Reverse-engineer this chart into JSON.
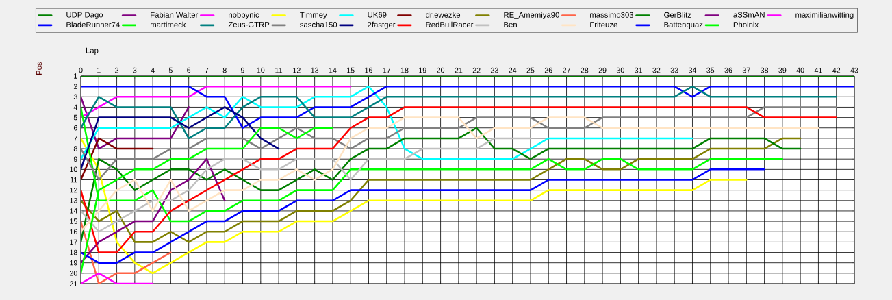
{
  "chart_data": {
    "type": "line",
    "xlabel": "Lap",
    "ylabel": "Pos",
    "x": [
      0,
      1,
      2,
      3,
      4,
      5,
      6,
      7,
      8,
      9,
      10,
      11,
      12,
      13,
      14,
      15,
      16,
      17,
      18,
      19,
      20,
      21,
      22,
      23,
      24,
      25,
      26,
      27,
      28,
      29,
      30,
      31,
      32,
      33,
      34,
      35,
      36,
      37,
      38,
      39,
      40,
      41,
      42,
      43
    ],
    "xlim": [
      0,
      43
    ],
    "xticks": [
      0,
      1,
      2,
      3,
      4,
      5,
      6,
      7,
      8,
      9,
      10,
      11,
      12,
      13,
      14,
      15,
      16,
      17,
      18,
      19,
      20,
      21,
      22,
      23,
      24,
      25,
      26,
      27,
      28,
      29,
      30,
      31,
      32,
      33,
      34,
      35,
      36,
      37,
      38,
      39,
      40,
      41,
      42,
      43
    ],
    "ylim": [
      21,
      1
    ],
    "yticks": [
      1,
      2,
      3,
      4,
      5,
      6,
      7,
      8,
      9,
      10,
      11,
      12,
      13,
      14,
      15,
      16,
      17,
      18,
      19,
      20,
      21
    ],
    "grid": true,
    "legend": "top",
    "series": [
      {
        "name": "UDP Dago",
        "color": "#008000",
        "values": [
          1,
          1,
          1,
          1,
          1,
          1,
          1,
          1,
          1,
          1,
          1,
          1,
          1,
          1,
          1,
          1,
          1,
          1,
          1,
          1,
          1,
          1,
          1,
          1,
          1,
          1,
          1,
          1,
          1,
          1,
          1,
          1,
          1,
          1,
          1,
          1,
          1,
          1,
          1,
          1,
          1,
          1,
          1,
          1
        ]
      },
      {
        "name": "BladeRunner74",
        "color": "#0000ff",
        "values": [
          2,
          2,
          2,
          2,
          2,
          2,
          2,
          3,
          3,
          6,
          5,
          5,
          5,
          4,
          4,
          4,
          3,
          2,
          2,
          2,
          2,
          2,
          2,
          2,
          2,
          2,
          2,
          2,
          2,
          2,
          2,
          2,
          2,
          2,
          3,
          2,
          2,
          2,
          2,
          2,
          2,
          2,
          2,
          2
        ]
      },
      {
        "name": "Fabian Walter",
        "color": "#800080",
        "values": [
          3,
          8,
          7,
          7,
          7,
          7,
          4,
          null,
          null,
          null,
          null,
          null,
          null,
          null,
          null,
          null,
          null,
          null,
          null,
          null,
          null,
          null,
          null,
          null,
          null,
          null,
          null,
          null,
          null,
          null,
          null,
          null,
          null,
          null,
          null,
          null,
          null,
          null,
          null,
          null,
          null,
          null,
          null,
          null
        ]
      },
      {
        "name": "martimeck",
        "color": "#00ff00",
        "values": [
          4,
          13,
          13,
          13,
          12,
          15,
          15,
          14,
          14,
          13,
          13,
          13,
          12,
          12,
          12,
          10,
          10,
          10,
          10,
          10,
          10,
          10,
          10,
          10,
          10,
          10,
          9,
          10,
          10,
          9,
          9,
          10,
          10,
          10,
          10,
          9,
          9,
          9,
          9,
          9,
          null,
          null,
          null,
          null
        ]
      },
      {
        "name": "nobbynic",
        "color": "#ff00ff",
        "values": [
          5,
          4,
          3,
          3,
          3,
          3,
          3,
          2,
          2,
          2,
          2,
          2,
          2,
          2,
          2,
          2,
          null,
          null,
          null,
          null,
          null,
          null,
          null,
          null,
          null,
          null,
          null,
          null,
          null,
          null,
          null,
          null,
          null,
          null,
          null,
          null,
          null,
          null,
          null,
          null,
          null,
          null,
          null,
          null
        ]
      },
      {
        "name": "Zeus-GTRP",
        "color": "#008080",
        "values": [
          6,
          3,
          4,
          4,
          4,
          4,
          7,
          6,
          6,
          4,
          3,
          3,
          3,
          5,
          5,
          5,
          4,
          3,
          3,
          3,
          3,
          3,
          3,
          3,
          3,
          3,
          3,
          3,
          3,
          3,
          3,
          3,
          3,
          3,
          2,
          3,
          3,
          3,
          3,
          3,
          3,
          3,
          3,
          null
        ]
      },
      {
        "name": "Timmey",
        "color": "#ffff00",
        "values": [
          7,
          10,
          17,
          19,
          20,
          19,
          18,
          17,
          17,
          16,
          16,
          16,
          15,
          15,
          15,
          14,
          13,
          13,
          13,
          13,
          13,
          13,
          13,
          13,
          13,
          13,
          12,
          12,
          12,
          12,
          12,
          12,
          12,
          12,
          12,
          11,
          11,
          11,
          null,
          null,
          null,
          null,
          null,
          null
        ]
      },
      {
        "name": "sascha150",
        "color": "#808080",
        "values": [
          8,
          11,
          9,
          9,
          9,
          8,
          8,
          7,
          7,
          7,
          8,
          7,
          6,
          7,
          7,
          8,
          7,
          7,
          6,
          6,
          6,
          6,
          5,
          5,
          5,
          5,
          6,
          6,
          6,
          5,
          5,
          5,
          5,
          5,
          5,
          5,
          5,
          5,
          4,
          4,
          4,
          4,
          4,
          null
        ]
      },
      {
        "name": "UK69",
        "color": "#00ffff",
        "values": [
          9,
          6,
          6,
          6,
          6,
          6,
          5,
          4,
          5,
          3,
          4,
          4,
          4,
          3,
          3,
          3,
          2,
          4,
          8,
          9,
          9,
          9,
          9,
          9,
          9,
          8,
          7,
          7,
          7,
          7,
          7,
          7,
          7,
          7,
          7,
          null,
          null,
          null,
          null,
          null,
          null,
          null,
          null,
          null
        ]
      },
      {
        "name": "2fastger",
        "color": "#000080",
        "values": [
          10,
          5,
          5,
          5,
          5,
          5,
          6,
          5,
          4,
          5,
          7,
          8,
          null,
          null,
          null,
          null,
          null,
          null,
          null,
          null,
          null,
          null,
          null,
          null,
          null,
          null,
          null,
          null,
          null,
          null,
          null,
          null,
          null,
          null,
          null,
          null,
          null,
          null,
          null,
          null,
          null,
          null,
          null,
          null
        ]
      },
      {
        "name": "dr.ewezke",
        "color": "#800000",
        "values": [
          11,
          7,
          8,
          8,
          8,
          null,
          null,
          null,
          null,
          null,
          null,
          null,
          null,
          null,
          null,
          null,
          null,
          null,
          null,
          null,
          null,
          null,
          null,
          null,
          null,
          null,
          null,
          null,
          null,
          null,
          null,
          null,
          null,
          null,
          null,
          null,
          null,
          null,
          null,
          null,
          null,
          null,
          null,
          null
        ]
      },
      {
        "name": "RedBullRacer",
        "color": "#ff0000",
        "values": [
          12,
          18,
          18,
          16,
          16,
          14,
          13,
          12,
          11,
          10,
          9,
          9,
          8,
          8,
          8,
          6,
          5,
          5,
          4,
          4,
          4,
          4,
          4,
          4,
          4,
          4,
          4,
          4,
          4,
          4,
          4,
          4,
          4,
          4,
          4,
          4,
          4,
          4,
          5,
          5,
          5,
          5,
          5,
          null
        ]
      },
      {
        "name": "RE_Amemiya90",
        "color": "#808000",
        "values": [
          13,
          15,
          14,
          17,
          17,
          16,
          17,
          16,
          16,
          15,
          15,
          15,
          14,
          14,
          14,
          13,
          11,
          11,
          11,
          11,
          11,
          11,
          11,
          11,
          11,
          11,
          10,
          9,
          9,
          10,
          10,
          9,
          9,
          9,
          9,
          8,
          8,
          8,
          8,
          7,
          7,
          null,
          null,
          null
        ]
      },
      {
        "name": "Ben",
        "color": "#c0c0c0",
        "values": [
          14,
          16,
          15,
          14,
          13,
          13,
          12,
          10,
          9,
          9,
          10,
          10,
          9,
          9,
          9,
          11,
          9,
          9,
          9,
          8,
          8,
          8,
          8,
          7,
          7,
          7,
          null,
          null,
          null,
          null,
          null,
          null,
          null,
          null,
          null,
          null,
          null,
          null,
          null,
          null,
          null,
          null,
          null,
          null
        ]
      },
      {
        "name": "massimo303",
        "color": "#ff6347",
        "values": [
          15,
          21,
          20,
          20,
          19,
          18,
          null,
          null,
          null,
          null,
          null,
          null,
          null,
          null,
          null,
          null,
          null,
          null,
          null,
          null,
          null,
          null,
          null,
          null,
          null,
          null,
          null,
          null,
          null,
          null,
          null,
          null,
          null,
          null,
          null,
          null,
          null,
          null,
          null,
          null,
          null,
          null,
          null,
          null
        ]
      },
      {
        "name": "Friteuze",
        "color": "#ffe4c4",
        "values": [
          16,
          14,
          12,
          11,
          14,
          11,
          14,
          13,
          12,
          12,
          11,
          11,
          10,
          11,
          10,
          7,
          6,
          6,
          5,
          5,
          5,
          5,
          7,
          6,
          6,
          6,
          5,
          5,
          5,
          6,
          6,
          6,
          6,
          6,
          6,
          6,
          6,
          6,
          6,
          6,
          6,
          6,
          null,
          null
        ]
      },
      {
        "name": "GerBlitz",
        "color": "#008000",
        "values": [
          17,
          9,
          10,
          12,
          11,
          10,
          10,
          11,
          10,
          11,
          12,
          12,
          11,
          10,
          11,
          9,
          8,
          8,
          7,
          7,
          7,
          7,
          6,
          8,
          8,
          9,
          8,
          8,
          8,
          8,
          8,
          8,
          8,
          8,
          8,
          7,
          7,
          7,
          7,
          8,
          8,
          null,
          null,
          null
        ]
      },
      {
        "name": "Battenquaz",
        "color": "#0000ff",
        "values": [
          18,
          19,
          19,
          18,
          18,
          17,
          16,
          15,
          15,
          14,
          14,
          14,
          13,
          13,
          13,
          12,
          12,
          12,
          12,
          12,
          12,
          12,
          12,
          12,
          12,
          12,
          11,
          11,
          11,
          11,
          11,
          11,
          11,
          11,
          11,
          10,
          10,
          10,
          10,
          null,
          null,
          null,
          null,
          null
        ]
      },
      {
        "name": "aSSmAN",
        "color": "#800080",
        "values": [
          19,
          17,
          16,
          15,
          15,
          12,
          11,
          9,
          13,
          null,
          null,
          null,
          null,
          null,
          null,
          null,
          null,
          null,
          null,
          null,
          null,
          null,
          null,
          null,
          null,
          null,
          null,
          null,
          null,
          null,
          null,
          null,
          null,
          null,
          null,
          null,
          null,
          null,
          null,
          null,
          null,
          null,
          null,
          null
        ]
      },
      {
        "name": "Phoinix",
        "color": "#00ff00",
        "values": [
          20,
          12,
          11,
          10,
          10,
          9,
          9,
          8,
          8,
          8,
          6,
          6,
          7,
          6,
          6,
          null,
          null,
          null,
          null,
          null,
          null,
          null,
          null,
          null,
          null,
          null,
          null,
          null,
          null,
          null,
          null,
          null,
          null,
          null,
          null,
          null,
          null,
          null,
          null,
          null,
          null,
          null,
          null,
          null
        ]
      },
      {
        "name": "maximilianwitting",
        "color": "#ff00ff",
        "values": [
          21,
          20,
          21,
          21,
          21,
          null,
          null,
          null,
          null,
          null,
          null,
          null,
          null,
          null,
          null,
          null,
          null,
          null,
          null,
          null,
          null,
          null,
          null,
          null,
          null,
          null,
          null,
          null,
          null,
          null,
          null,
          null,
          null,
          null,
          null,
          null,
          null,
          null,
          null,
          null,
          null,
          null,
          null,
          null
        ]
      }
    ]
  }
}
